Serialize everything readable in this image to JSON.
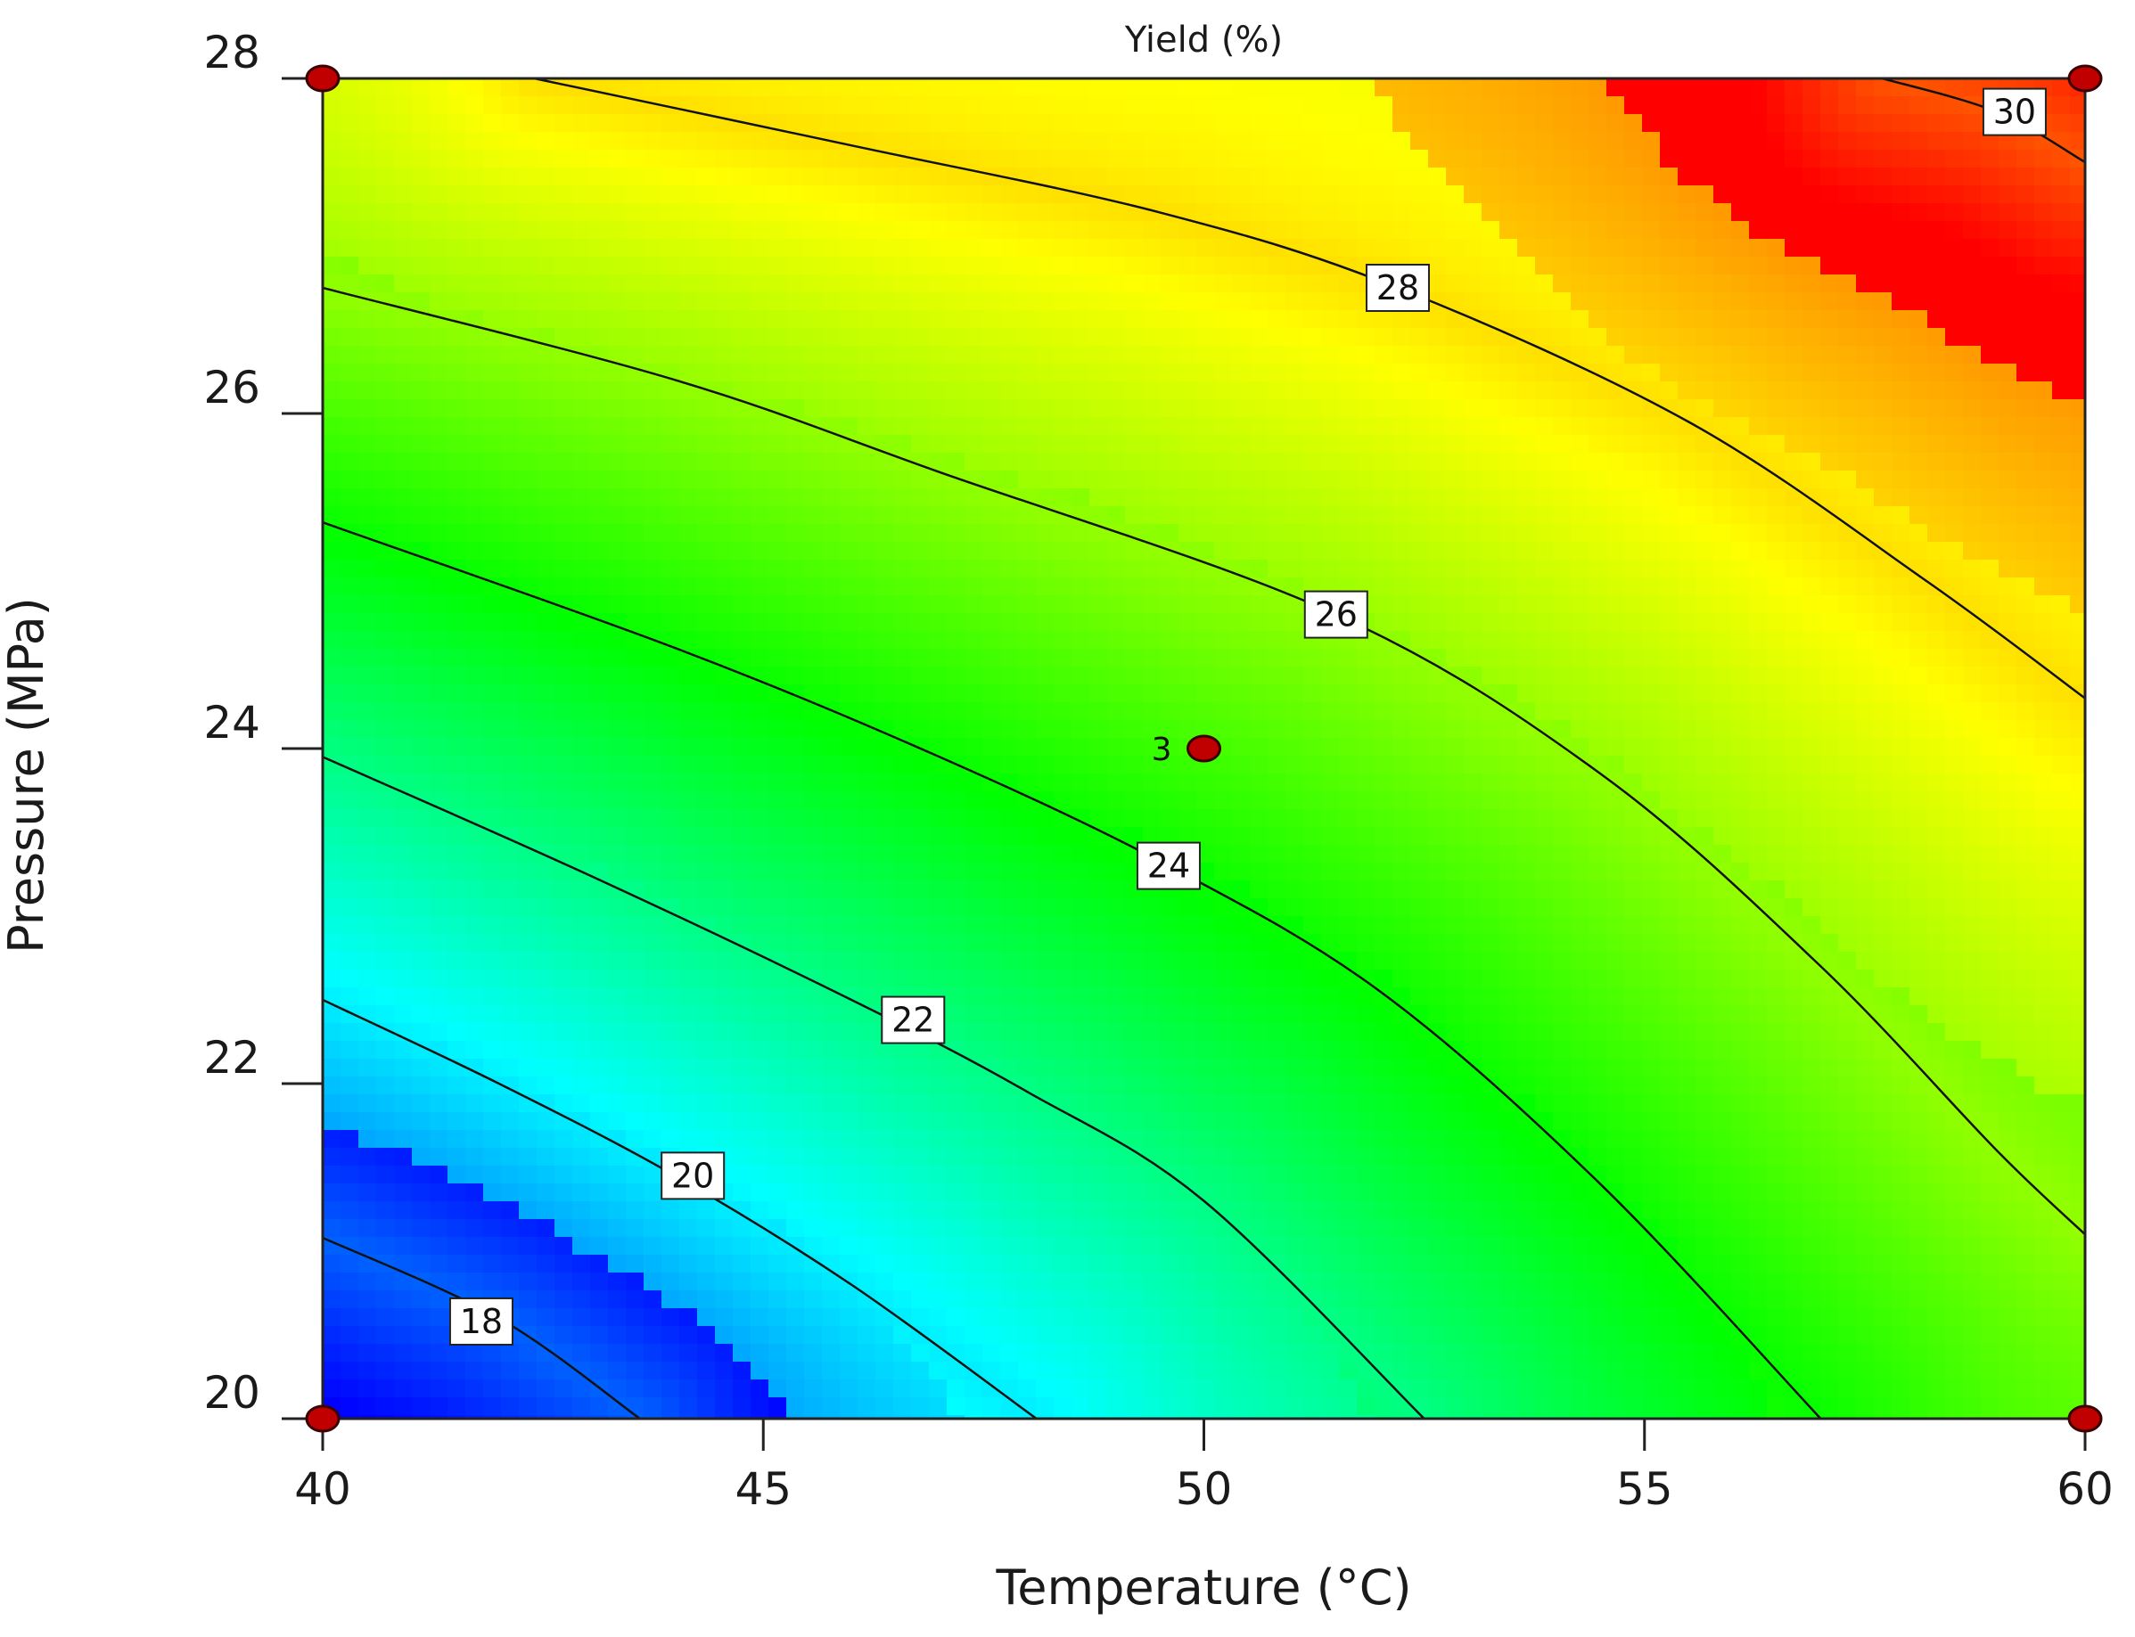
{
  "chart_data": {
    "type": "contour",
    "title": "Yield (%)",
    "xlabel": "Temperature (°C)",
    "ylabel": "Pressure (MPa)",
    "xlim": [
      40,
      60
    ],
    "ylim": [
      20,
      28
    ],
    "x_ticks": [
      40,
      45,
      50,
      55,
      60
    ],
    "y_ticks": [
      20,
      22,
      24,
      26,
      28
    ],
    "x_tick_labels": [
      "40",
      "45",
      "50",
      "55",
      "60"
    ],
    "y_tick_labels": [
      "20",
      "22",
      "24",
      "26",
      "28"
    ],
    "colormap": [
      "#0000ff",
      "#00ffff",
      "#00ff00",
      "#ffff00",
      "#ff0000"
    ],
    "value_range": [
      16.6,
      31.2
    ],
    "contours": [
      {
        "level": 18,
        "label": "18",
        "points": [
          [
            40,
            21.08
          ],
          [
            42,
            20.6
          ],
          [
            43.6,
            20
          ]
        ],
        "label_at": [
          41.8,
          20.58
        ]
      },
      {
        "level": 20,
        "label": "20",
        "points": [
          [
            40,
            22.5
          ],
          [
            42,
            22.0
          ],
          [
            44,
            21.45
          ],
          [
            46,
            20.8
          ],
          [
            48.1,
            20
          ]
        ],
        "label_at": [
          44.2,
          21.45
        ]
      },
      {
        "level": 22,
        "label": "22",
        "points": [
          [
            40,
            23.95
          ],
          [
            43,
            23.25
          ],
          [
            46,
            22.5
          ],
          [
            48,
            21.95
          ],
          [
            50,
            21.3
          ],
          [
            52.5,
            20
          ]
        ],
        "label_at": [
          46.7,
          22.38
        ]
      },
      {
        "level": 24,
        "label": "24",
        "points": [
          [
            40,
            25.35
          ],
          [
            44,
            24.6
          ],
          [
            47,
            23.95
          ],
          [
            49.6,
            23.3
          ],
          [
            52,
            22.55
          ],
          [
            54.5,
            21.4
          ],
          [
            57,
            20
          ]
        ],
        "label_at": [
          49.6,
          23.3
        ]
      },
      {
        "level": 26,
        "label": "26",
        "points": [
          [
            40,
            26.75
          ],
          [
            44,
            26.2
          ],
          [
            47,
            25.65
          ],
          [
            51.5,
            24.8
          ],
          [
            54.5,
            23.85
          ],
          [
            57,
            22.7
          ],
          [
            59,
            21.6
          ],
          [
            60,
            21.1
          ]
        ],
        "label_at": [
          51.5,
          24.8
        ]
      },
      {
        "level": 28,
        "label": "28",
        "points": [
          [
            42.4,
            28
          ],
          [
            46,
            27.6
          ],
          [
            49.5,
            27.2
          ],
          [
            52.2,
            26.75
          ],
          [
            55.5,
            25.95
          ],
          [
            58.2,
            25.0
          ],
          [
            60,
            24.3
          ]
        ],
        "label_at": [
          52.2,
          26.75
        ]
      },
      {
        "level": 30,
        "label": "30",
        "points": [
          [
            57.7,
            28
          ],
          [
            59,
            27.8
          ],
          [
            60,
            27.5
          ]
        ],
        "label_at": [
          59.2,
          27.8
        ]
      }
    ],
    "design_points": [
      {
        "x": 40,
        "y": 28,
        "label": ""
      },
      {
        "x": 60,
        "y": 28,
        "label": ""
      },
      {
        "x": 50,
        "y": 24,
        "label": "3"
      },
      {
        "x": 40,
        "y": 20,
        "label": ""
      },
      {
        "x": 60,
        "y": 20,
        "label": ""
      }
    ]
  }
}
